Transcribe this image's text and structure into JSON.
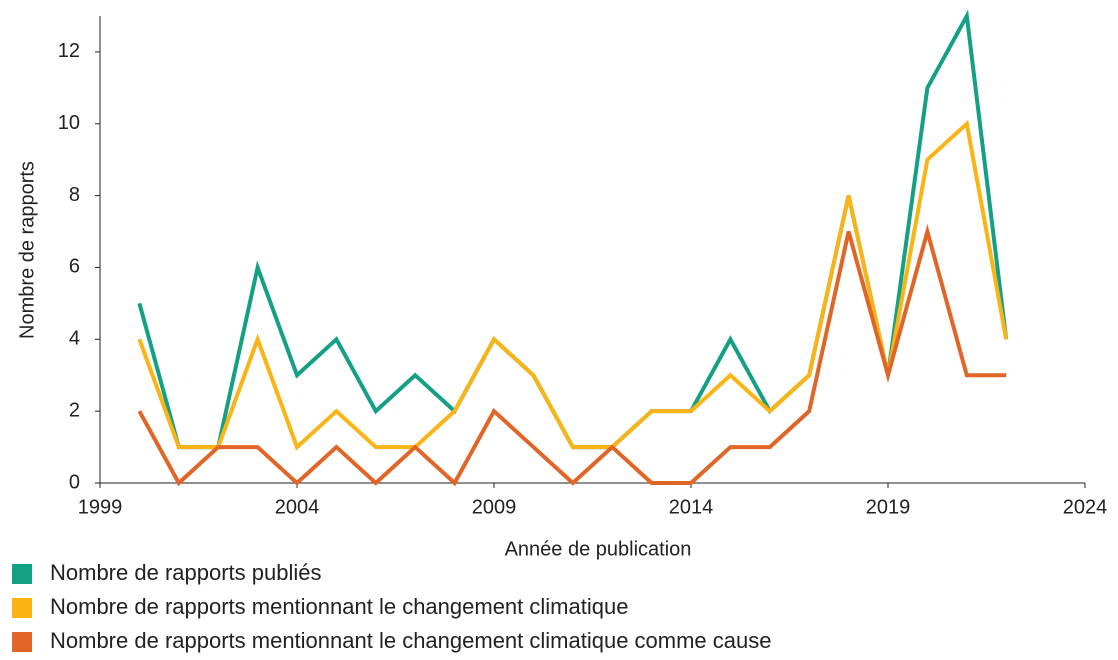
{
  "chart_data": {
    "type": "line",
    "x_label": "Année de publication",
    "y_label": "Nombre de rapports",
    "x": [
      2000,
      2001,
      2002,
      2003,
      2004,
      2005,
      2006,
      2007,
      2008,
      2009,
      2010,
      2011,
      2012,
      2013,
      2014,
      2015,
      2016,
      2017,
      2018,
      2019,
      2020,
      2021,
      2022
    ],
    "series": [
      {
        "name": "Nombre de rapports publiés",
        "color": "#14a085",
        "values": [
          5,
          1,
          1,
          6,
          3,
          4,
          2,
          3,
          2,
          4,
          3,
          1,
          1,
          2,
          2,
          4,
          2,
          3,
          8,
          3,
          11,
          13,
          4
        ]
      },
      {
        "name": "Nombre de rapports mentionnant le changement climatique",
        "color": "#fbb416",
        "values": [
          4,
          1,
          1,
          4,
          1,
          2,
          1,
          1,
          2,
          4,
          3,
          1,
          1,
          2,
          2,
          3,
          2,
          3,
          8,
          3,
          9,
          10,
          4
        ]
      },
      {
        "name": "Nombre de rapports mentionnant le changement climatique comme cause",
        "color": "#e06526",
        "values": [
          2,
          0,
          1,
          1,
          0,
          1,
          0,
          1,
          0,
          2,
          1,
          0,
          1,
          0,
          0,
          1,
          1,
          2,
          7,
          3,
          7,
          3,
          3
        ]
      }
    ],
    "xlim": [
      1999,
      2024
    ],
    "xticks": [
      1999,
      2004,
      2009,
      2014,
      2019,
      2024
    ],
    "ylim": [
      0,
      13
    ],
    "yticks": [
      0,
      2,
      4,
      6,
      8,
      10,
      12
    ],
    "grid": false,
    "legend": "bottom-left"
  }
}
